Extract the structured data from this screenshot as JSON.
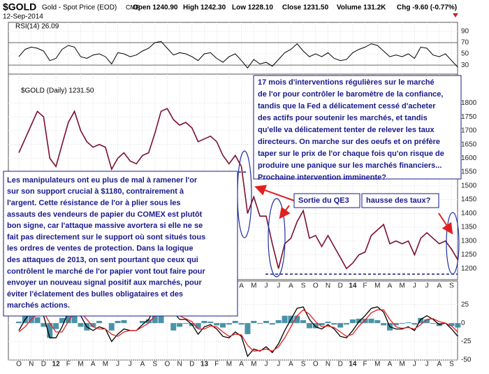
{
  "header": {
    "symbol": "$GOLD",
    "description": "Gold - Spot Price (EOD)",
    "exchange": "CME",
    "date": "12-Sep-2014",
    "quote": [
      "Open 1240.90",
      "High 1242.30",
      "Low 1228.10",
      "Close 1231.50",
      "Volume 131.2K",
      "Chg -9.60 (-0.77%)"
    ]
  },
  "chart_data": [
    {
      "type": "line",
      "title": "RSI(14) 26.09",
      "color": "#000000",
      "ylim": [
        14,
        106
      ],
      "yticks": [
        90,
        70,
        50,
        30
      ],
      "grid": true,
      "values": [
        45,
        58,
        62,
        60,
        55,
        38,
        42,
        58,
        65,
        62,
        45,
        42,
        48,
        50,
        45,
        32,
        52,
        50,
        45,
        48,
        55,
        60,
        70,
        72,
        60,
        48,
        52,
        50,
        45,
        38,
        50,
        52,
        42,
        35,
        45,
        50,
        38,
        25,
        40,
        32,
        35,
        28,
        40,
        52,
        58,
        68,
        55,
        45,
        50,
        45,
        52,
        42,
        38,
        40,
        52,
        58,
        62,
        68,
        65,
        55,
        45,
        48,
        45,
        50,
        42,
        62,
        60,
        48,
        45,
        50,
        38,
        26.09
      ]
    },
    {
      "type": "line",
      "title": "$GOLD (Daily) 1231.50",
      "color": "#7a1030",
      "ylim": [
        1160,
        1905
      ],
      "yticks": [
        1200,
        1250,
        1300,
        1350,
        1400,
        1450,
        1500,
        1550,
        1600,
        1650,
        1700,
        1750,
        1800
      ],
      "grid": true,
      "reference_lines": [
        1550,
        1180
      ],
      "reference_color": "#1a1a8c",
      "values": [
        1620,
        1670,
        1720,
        1770,
        1750,
        1600,
        1570,
        1650,
        1730,
        1770,
        1700,
        1660,
        1640,
        1650,
        1640,
        1560,
        1600,
        1620,
        1590,
        1580,
        1610,
        1620,
        1690,
        1770,
        1780,
        1740,
        1720,
        1730,
        1710,
        1660,
        1670,
        1680,
        1660,
        1610,
        1580,
        1610,
        1570,
        1400,
        1460,
        1390,
        1390,
        1290,
        1200,
        1290,
        1310,
        1370,
        1410,
        1310,
        1320,
        1280,
        1320,
        1280,
        1240,
        1200,
        1220,
        1250,
        1260,
        1320,
        1340,
        1360,
        1290,
        1300,
        1290,
        1300,
        1250,
        1310,
        1330,
        1310,
        1290,
        1300,
        1270,
        1231.5
      ],
      "annotations": [
        {
          "lines": [
            "17 mois d'interventions régulières sur le marché",
            "de l'or pour contrôler le baromètre de la confiance,",
            "tandis que la Fed a délicatement cessé d'acheter",
            "des actifs pour soutenir les marchés, et tandis",
            "qu'elle va délicatement tenter de relever les taux",
            "directeurs. On marche sur des oeufs et on préfère",
            "taper sur le prix de l'or chaque fois qu'on risque de",
            "produire une panique sur les marchés financiers...",
            "Prochaine intervention imminente?"
          ]
        },
        {
          "lines": [
            "Les manipulateurs ont eu plus de mal à ramener l'or",
            "sur son support crucial à $1180, contrairement à",
            "l'argent. Cette résistance de l'or à plier sous les",
            "assauts des vendeurs de papier du COMEX est plutôt",
            "bon signe, car l'attaque massive avortera si elle ne se",
            "fait pas directement sur le support où sont situés tous",
            "les ordres de ventes de protection. Dans la logique",
            "des attaques de 2013, on sent pourtant que ceux qui",
            "contrôlent le marché de l'or papier vont tout faire pour",
            "envoyer un nouveau signal positif aux marchés, pour",
            "éviter l'éclatement des bulles obligataires et des",
            "marchés actions."
          ]
        },
        {
          "text": "Sortie du QE3"
        },
        {
          "text": "hausse des taux?"
        }
      ]
    },
    {
      "type": "macd",
      "ylim": [
        -50,
        57
      ],
      "yticks": [
        25,
        0,
        -25,
        -50
      ],
      "grid": true,
      "categories": [
        "O",
        null,
        "N",
        null,
        "D",
        null,
        "12",
        null,
        "F",
        null,
        "M",
        null,
        "A",
        null,
        "M",
        null,
        "J",
        null,
        "J",
        null,
        "A",
        null,
        "S",
        null,
        "O",
        null,
        "N",
        null,
        "D",
        null,
        "13",
        null,
        "F",
        null,
        "M",
        null,
        "A",
        null,
        "M",
        null,
        "J",
        null,
        "J",
        null,
        "A",
        null,
        "S",
        null,
        "O",
        null,
        "N",
        null,
        "D",
        null,
        "14",
        null,
        "F",
        null,
        "M",
        null,
        "A",
        null,
        "M",
        null,
        "J",
        null,
        "J",
        null,
        "A",
        null,
        "S",
        null
      ],
      "series": [
        {
          "color": "#000000",
          "values": [
            -10,
            5,
            15,
            20,
            10,
            -20,
            -20,
            -5,
            15,
            25,
            10,
            -5,
            -10,
            -5,
            -8,
            -25,
            -15,
            -8,
            -10,
            -10,
            -2,
            5,
            20,
            35,
            30,
            15,
            5,
            5,
            -2,
            -15,
            -5,
            -2,
            -8,
            -18,
            -20,
            -12,
            -18,
            -45,
            -35,
            -38,
            -32,
            -40,
            -28,
            -10,
            5,
            20,
            22,
            5,
            -5,
            -8,
            -2,
            -8,
            -18,
            -20,
            -10,
            2,
            10,
            20,
            22,
            15,
            -5,
            -8,
            -8,
            -5,
            -10,
            5,
            10,
            5,
            -2,
            0,
            -8,
            -18
          ]
        },
        {
          "color": "#e02020",
          "values": [
            -12,
            -5,
            5,
            12,
            15,
            0,
            -12,
            -12,
            2,
            15,
            15,
            5,
            -5,
            -8,
            -8,
            -15,
            -18,
            -12,
            -10,
            -10,
            -5,
            0,
            10,
            25,
            30,
            25,
            10,
            6,
            2,
            -8,
            -8,
            -4,
            -5,
            -12,
            -18,
            -15,
            -16,
            -30,
            -38,
            -37,
            -35,
            -38,
            -32,
            -20,
            -5,
            10,
            18,
            12,
            2,
            -5,
            -4,
            -6,
            -12,
            -18,
            -15,
            -4,
            4,
            14,
            18,
            18,
            5,
            -5,
            -7,
            -6,
            -8,
            -2,
            5,
            6,
            2,
            0,
            -4,
            -12
          ]
        },
        {
          "type": "histogram",
          "color": "#2a7f99",
          "values": [
            2,
            10,
            10,
            8,
            -5,
            -20,
            -8,
            7,
            13,
            10,
            -5,
            -10,
            -5,
            3,
            0,
            -10,
            3,
            4,
            0,
            0,
            3,
            5,
            10,
            10,
            0,
            -10,
            -5,
            -1,
            -4,
            -7,
            3,
            2,
            -3,
            -6,
            -2,
            3,
            -2,
            -15,
            3,
            -1,
            3,
            -2,
            4,
            10,
            10,
            10,
            4,
            -7,
            -7,
            -3,
            2,
            -2,
            -6,
            -2,
            5,
            6,
            6,
            6,
            4,
            -3,
            -10,
            -3,
            -1,
            1,
            -2,
            7,
            5,
            -1,
            -4,
            0,
            -4,
            -6
          ]
        }
      ]
    }
  ]
}
